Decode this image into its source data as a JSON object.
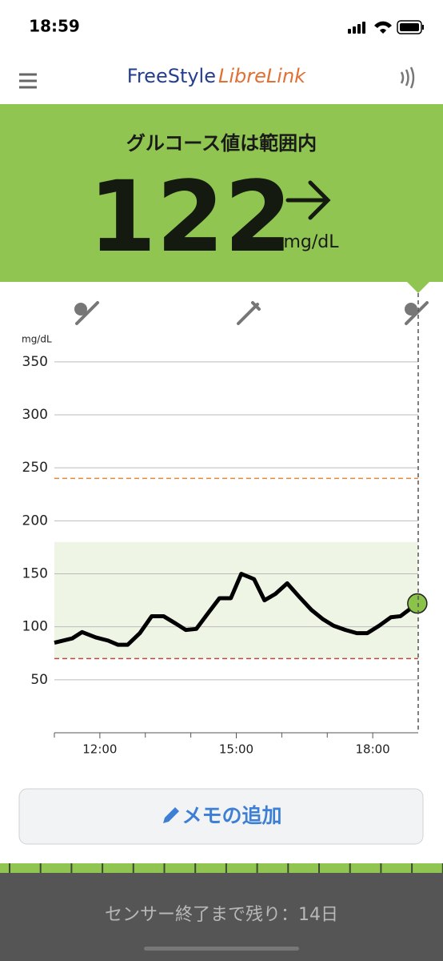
{
  "status_bar": {
    "time": "18:59"
  },
  "header": {
    "brand_1": "FreeStyle",
    "brand_2": "LibreLink"
  },
  "reading": {
    "status": "グルコース値は範囲内",
    "value": 122,
    "unit": "mg/dL"
  },
  "chart_data": {
    "type": "line",
    "y_label": "mg/dL",
    "x": [
      11.0,
      11.39,
      11.61,
      11.91,
      12.18,
      12.4,
      12.61,
      12.88,
      13.14,
      13.4,
      13.67,
      13.89,
      14.12,
      14.4,
      14.63,
      14.88,
      15.11,
      15.39,
      15.62,
      15.86,
      16.12,
      16.39,
      16.65,
      16.91,
      17.14,
      17.4,
      17.65,
      17.88,
      18.14,
      18.4,
      18.61,
      18.98
    ],
    "series": [
      {
        "color": "#000000",
        "values": [
          85,
          89,
          95,
          90,
          87,
          83,
          83,
          94,
          110,
          110,
          103,
          97,
          98,
          114,
          127,
          127,
          150,
          145,
          125,
          131,
          141,
          128,
          116,
          107,
          101,
          97,
          94,
          94,
          101,
          109,
          110,
          122
        ]
      }
    ],
    "xlim": [
      11,
      19
    ],
    "xticks": [
      {
        "value": 12,
        "label": "12:00"
      },
      {
        "value": 15,
        "label": "15:00"
      },
      {
        "value": 18,
        "label": "18:00"
      }
    ],
    "minor_xticks": [
      11,
      13,
      14,
      16,
      17
    ],
    "ylim": [
      0,
      365
    ],
    "yticks": [
      50,
      100,
      150,
      200,
      250,
      300,
      350
    ],
    "grid": true,
    "target_range": [
      70,
      180
    ],
    "target_color": "#eef5e4",
    "high_threshold": 240,
    "high_color": "#e08a3c",
    "low_threshold": 70,
    "low_color": "#c4473c",
    "current_color": "#8bc34a"
  },
  "memo_button": "メモの追加",
  "footer": "センサー終了まで残り：14日"
}
